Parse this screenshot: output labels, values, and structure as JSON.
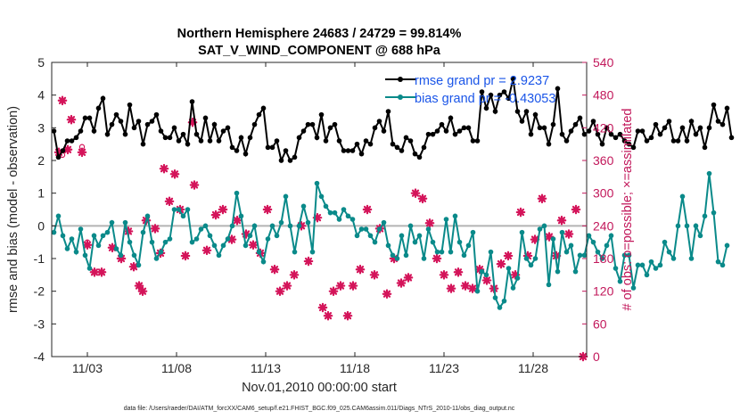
{
  "chart_data": {
    "type": "line",
    "title_line1": "Northern Hemisphere 24683 / 24729 = 99.814%",
    "title_line2": "SAT_V_WIND_COMPONENT @ 688 hPa",
    "xlabel": "Nov.01,2010 00:00:00 start",
    "ylabel_left": "rmse and bias (model - observation)",
    "ylabel_right": "# of obs: o=possible; ×=assimilated",
    "footer": "data file: /Users/raeder/DAI/ATM_forcXX/CAM6_setup/f.e21.FHIST_BGC.f09_025.CAM6assim.011/Diags_NTrS_2010-11/obs_diag_output.nc",
    "x_ticks": [
      {
        "day": 3,
        "label": "11/03"
      },
      {
        "day": 8,
        "label": "11/08"
      },
      {
        "day": 13,
        "label": "11/13"
      },
      {
        "day": 18,
        "label": "11/18"
      },
      {
        "day": 23,
        "label": "11/23"
      },
      {
        "day": 28,
        "label": "11/28"
      }
    ],
    "y_left_ticks": [
      "5",
      "4",
      "3",
      "2",
      "1",
      "0",
      "-1",
      "-2",
      "-3",
      "-4"
    ],
    "y_right_ticks": [
      "540",
      "480",
      "420",
      "360",
      "300",
      "240",
      "180",
      "120",
      "60",
      "0"
    ],
    "xlim": [
      1.0,
      31.0
    ],
    "ylim_left": [
      -4,
      5
    ],
    "ylim_right": [
      0,
      540
    ],
    "legend": [
      {
        "label": "rmse grand pr = 2.9237",
        "color": "#000000"
      },
      {
        "label": "bias grand pr = -0.43053",
        "color": "#008080"
      }
    ],
    "colors": {
      "rmse": "#000000",
      "bias": "#0a8a8a",
      "obs": "#d4145a",
      "zero_line": "#b4b4b4",
      "legend_text": "#1a55e8",
      "right_axis": "#c2185b"
    },
    "x_start": 1.125,
    "x_step": 0.25,
    "series": [
      {
        "name": "rmse",
        "values": [
          2.9,
          2.1,
          2.3,
          2.6,
          2.6,
          2.7,
          2.9,
          3.3,
          3.3,
          2.9,
          3.6,
          3.9,
          2.8,
          3.1,
          3.4,
          3.2,
          2.8,
          3.7,
          3.0,
          3.2,
          2.5,
          3.1,
          3.2,
          3.4,
          2.9,
          2.7,
          2.7,
          3.0,
          2.6,
          2.8,
          2.5,
          3.8,
          2.8,
          2.6,
          3.3,
          2.6,
          3.1,
          2.6,
          2.9,
          3.0,
          2.4,
          2.3,
          2.7,
          2.2,
          2.7,
          3.1,
          3.4,
          3.6,
          2.4,
          2.4,
          2.6,
          2.0,
          2.3,
          2.0,
          2.1,
          2.7,
          2.9,
          3.1,
          3.1,
          2.7,
          3.4,
          2.6,
          3.0,
          3.1,
          2.6,
          2.3,
          2.3,
          2.3,
          2.5,
          2.2,
          2.6,
          2.5,
          3.0,
          3.2,
          2.9,
          3.5,
          2.5,
          2.4,
          2.3,
          2.7,
          2.6,
          2.2,
          2.1,
          2.4,
          2.8,
          2.8,
          2.9,
          3.1,
          2.9,
          3.3,
          2.8,
          2.9,
          3.0,
          3.0,
          2.6,
          2.6,
          4.1,
          3.6,
          4.0,
          3.5,
          4.0,
          4.1,
          3.9,
          4.5,
          3.5,
          3.2,
          3.5,
          2.8,
          3.4,
          3.0,
          3.0,
          2.5,
          3.1,
          4.2,
          2.8,
          2.6,
          2.9,
          3.1,
          3.3,
          2.8,
          2.9,
          3.2,
          2.8,
          2.5,
          3.0,
          2.8,
          2.7,
          2.8,
          2.6,
          2.5,
          2.4,
          2.9,
          2.9,
          2.6,
          2.7,
          3.1,
          2.8,
          3.0,
          3.2,
          2.6,
          2.6,
          3.0,
          2.6,
          3.2,
          2.8,
          3.0,
          2.4,
          3.0,
          3.7,
          3.2,
          3.1,
          3.6,
          2.7
        ]
      },
      {
        "name": "bias",
        "values": [
          -0.2,
          0.3,
          -0.3,
          -0.7,
          -0.4,
          -0.8,
          -0.1,
          -0.9,
          -1.3,
          -0.3,
          -0.6,
          -0.3,
          -0.2,
          0.1,
          -0.7,
          -0.9,
          0.1,
          -0.5,
          -0.9,
          -1.2,
          -0.2,
          0.3,
          -0.5,
          -1.0,
          -0.8,
          -0.5,
          -0.4,
          0.5,
          0.5,
          0.3,
          0.5,
          -0.5,
          -0.4,
          -0.1,
          0.0,
          -0.3,
          -0.6,
          -0.9,
          -0.6,
          -0.4,
          0.0,
          1.0,
          0.3,
          -0.6,
          -0.3,
          0.0,
          -0.8,
          -1.1,
          -0.4,
          0.0,
          -0.3,
          0.1,
          0.9,
          0.0,
          -0.8,
          0.0,
          0.6,
          0.1,
          -0.8,
          1.3,
          0.9,
          0.6,
          0.4,
          0.4,
          0.2,
          0.5,
          0.3,
          0.2,
          -0.3,
          -0.1,
          -0.1,
          -0.3,
          -0.5,
          -0.1,
          0.1,
          -0.6,
          -0.9,
          -1.0,
          -0.3,
          -0.9,
          0.0,
          -0.5,
          -0.3,
          -1.0,
          -0.1,
          -0.5,
          -0.8,
          -0.8,
          0.2,
          -0.8,
          0.3,
          -0.5,
          -0.9,
          -0.6,
          -0.2,
          -2.0,
          -1.4,
          -1.5,
          -0.8,
          -2.2,
          -2.5,
          -2.3,
          -1.3,
          -1.9,
          -1.6,
          -0.2,
          -1.0,
          -1.2,
          -1.0,
          -0.1,
          0.0,
          -1.8,
          -0.4,
          -1.4,
          -0.2,
          -0.8,
          -0.6,
          -1.4,
          -0.9,
          -0.9,
          -0.3,
          -0.5,
          -0.8,
          -1.0,
          -0.6,
          -0.3,
          -1.3,
          -1.7,
          -0.9,
          -0.9,
          -1.9,
          -1.2,
          -1.2,
          -1.5,
          -1.1,
          -1.3,
          -1.2,
          -0.5,
          -0.8,
          -1.0,
          0.0,
          0.9,
          0.0,
          -1.0,
          0.0,
          -0.3,
          0.3,
          1.6,
          0.4,
          -1.1,
          -1.2,
          -0.6
        ]
      }
    ],
    "obs_assimilated": [
      {
        "day": 1.4,
        "count": 375
      },
      {
        "day": 1.6,
        "count": 470
      },
      {
        "day": 1.9,
        "count": 380
      },
      {
        "day": 2.1,
        "count": 435
      },
      {
        "day": 2.7,
        "count": 375
      },
      {
        "day": 3.0,
        "count": 205
      },
      {
        "day": 3.4,
        "count": 155
      },
      {
        "day": 3.8,
        "count": 155
      },
      {
        "day": 4.4,
        "count": 200
      },
      {
        "day": 4.9,
        "count": 180
      },
      {
        "day": 5.3,
        "count": 230
      },
      {
        "day": 5.6,
        "count": 165
      },
      {
        "day": 5.9,
        "count": 130
      },
      {
        "day": 6.1,
        "count": 120
      },
      {
        "day": 6.3,
        "count": 250
      },
      {
        "day": 6.8,
        "count": 235
      },
      {
        "day": 7.1,
        "count": 190
      },
      {
        "day": 7.3,
        "count": 345
      },
      {
        "day": 7.6,
        "count": 285
      },
      {
        "day": 7.9,
        "count": 335
      },
      {
        "day": 8.2,
        "count": 270
      },
      {
        "day": 8.5,
        "count": 185
      },
      {
        "day": 8.9,
        "count": 430
      },
      {
        "day": 9.0,
        "count": 315
      },
      {
        "day": 9.7,
        "count": 195
      },
      {
        "day": 10.2,
        "count": 260
      },
      {
        "day": 10.6,
        "count": 270
      },
      {
        "day": 11.1,
        "count": 215
      },
      {
        "day": 11.4,
        "count": 250
      },
      {
        "day": 11.9,
        "count": 225
      },
      {
        "day": 12.3,
        "count": 205
      },
      {
        "day": 12.7,
        "count": 190
      },
      {
        "day": 13.1,
        "count": 270
      },
      {
        "day": 13.5,
        "count": 160
      },
      {
        "day": 13.8,
        "count": 120
      },
      {
        "day": 14.2,
        "count": 130
      },
      {
        "day": 14.6,
        "count": 150
      },
      {
        "day": 15.0,
        "count": 240
      },
      {
        "day": 15.4,
        "count": 175
      },
      {
        "day": 15.9,
        "count": 255
      },
      {
        "day": 16.2,
        "count": 90
      },
      {
        "day": 16.5,
        "count": 75
      },
      {
        "day": 16.8,
        "count": 120
      },
      {
        "day": 17.2,
        "count": 130
      },
      {
        "day": 17.6,
        "count": 75
      },
      {
        "day": 17.9,
        "count": 130
      },
      {
        "day": 18.3,
        "count": 160
      },
      {
        "day": 18.7,
        "count": 270
      },
      {
        "day": 19.1,
        "count": 150
      },
      {
        "day": 19.4,
        "count": 235
      },
      {
        "day": 19.8,
        "count": 115
      },
      {
        "day": 20.2,
        "count": 180
      },
      {
        "day": 20.6,
        "count": 135
      },
      {
        "day": 21.0,
        "count": 145
      },
      {
        "day": 21.4,
        "count": 300
      },
      {
        "day": 21.8,
        "count": 290
      },
      {
        "day": 22.2,
        "count": 245
      },
      {
        "day": 22.6,
        "count": 180
      },
      {
        "day": 23.0,
        "count": 150
      },
      {
        "day": 23.4,
        "count": 125
      },
      {
        "day": 23.8,
        "count": 155
      },
      {
        "day": 24.2,
        "count": 130
      },
      {
        "day": 24.6,
        "count": 125
      },
      {
        "day": 25.0,
        "count": 160
      },
      {
        "day": 25.4,
        "count": 140
      },
      {
        "day": 25.8,
        "count": 125
      },
      {
        "day": 26.2,
        "count": 170
      },
      {
        "day": 26.6,
        "count": 185
      },
      {
        "day": 27.0,
        "count": 150
      },
      {
        "day": 27.3,
        "count": 265
      },
      {
        "day": 27.7,
        "count": 185
      },
      {
        "day": 28.1,
        "count": 215
      },
      {
        "day": 28.5,
        "count": 290
      },
      {
        "day": 28.9,
        "count": 220
      },
      {
        "day": 29.3,
        "count": 185
      },
      {
        "day": 29.6,
        "count": 250
      },
      {
        "day": 30.0,
        "count": 225
      },
      {
        "day": 30.4,
        "count": 270
      },
      {
        "day": 30.8,
        "count": 0
      }
    ],
    "obs_possible": [
      {
        "day": 1.6,
        "count": 370
      },
      {
        "day": 2.7,
        "count": 385
      },
      {
        "day": 3.0,
        "count": 210
      }
    ]
  }
}
